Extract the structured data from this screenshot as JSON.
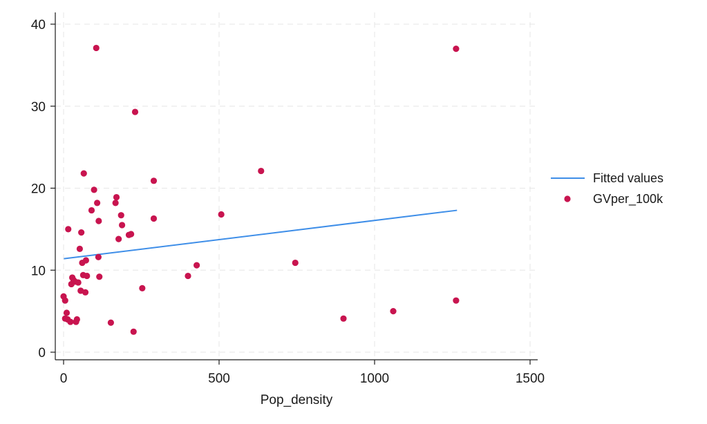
{
  "chart_data": {
    "type": "scatter",
    "title": "",
    "xlabel": "Pop_density",
    "ylabel": "",
    "xlim": [
      0,
      1500
    ],
    "ylim": [
      0,
      40
    ],
    "xticks": [
      0,
      500,
      1000,
      1500
    ],
    "yticks": [
      0,
      10,
      20,
      30,
      40
    ],
    "xtick_labels": [
      "0",
      "500",
      "1000",
      "1500"
    ],
    "ytick_labels": [
      "0",
      "10",
      "20",
      "30",
      "40"
    ],
    "grid": true,
    "legend_position": "right",
    "series": [
      {
        "name": "Fitted values",
        "kind": "line",
        "color": "#3e8ee8",
        "x": [
          1,
          1265
        ],
        "y": [
          11.4,
          17.3
        ]
      },
      {
        "name": "GVper_100k",
        "kind": "scatter",
        "color": "#c8144f",
        "points": [
          [
            0,
            6.8
          ],
          [
            5,
            6.3
          ],
          [
            5,
            4.1
          ],
          [
            10,
            4.8
          ],
          [
            13,
            4.0
          ],
          [
            15,
            15.0
          ],
          [
            22,
            3.7
          ],
          [
            25,
            8.3
          ],
          [
            28,
            9.1
          ],
          [
            32,
            8.8
          ],
          [
            37,
            8.6
          ],
          [
            40,
            3.7
          ],
          [
            43,
            4.0
          ],
          [
            47,
            8.5
          ],
          [
            52,
            12.6
          ],
          [
            55,
            7.5
          ],
          [
            57,
            14.6
          ],
          [
            60,
            10.9
          ],
          [
            63,
            9.4
          ],
          [
            65,
            21.8
          ],
          [
            70,
            7.3
          ],
          [
            72,
            11.2
          ],
          [
            75,
            9.3
          ],
          [
            90,
            17.3
          ],
          [
            98,
            19.8
          ],
          [
            105,
            37.1
          ],
          [
            108,
            18.2
          ],
          [
            113,
            16.0
          ],
          [
            112,
            11.6
          ],
          [
            115,
            9.2
          ],
          [
            152,
            3.6
          ],
          [
            167,
            18.2
          ],
          [
            170,
            18.9
          ],
          [
            177,
            13.8
          ],
          [
            185,
            16.7
          ],
          [
            188,
            15.5
          ],
          [
            210,
            14.3
          ],
          [
            217,
            14.4
          ],
          [
            225,
            2.5
          ],
          [
            230,
            29.3
          ],
          [
            253,
            7.8
          ],
          [
            290,
            20.9
          ],
          [
            290,
            16.3
          ],
          [
            400,
            9.3
          ],
          [
            428,
            10.6
          ],
          [
            507,
            16.8
          ],
          [
            635,
            22.1
          ],
          [
            745,
            10.9
          ],
          [
            900,
            4.1
          ],
          [
            1060,
            5.0
          ],
          [
            1262,
            37.0
          ],
          [
            1262,
            6.3
          ]
        ]
      }
    ]
  }
}
